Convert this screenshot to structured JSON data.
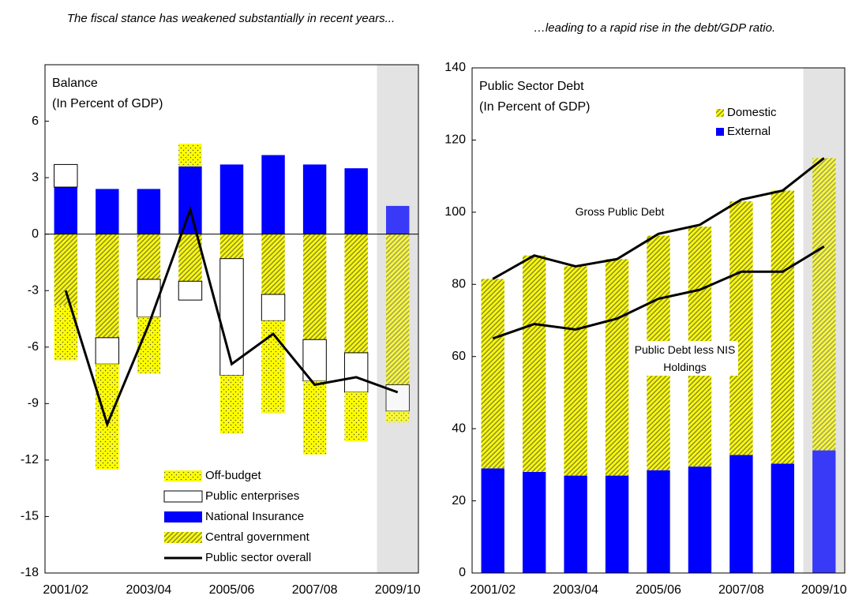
{
  "chart_data": [
    {
      "type": "bar",
      "stacked": true,
      "title": "The fiscal stance has weakened substantially in recent years...",
      "annotations": [
        "Balance",
        "(In Percent of GDP)"
      ],
      "categories": [
        "2001/02",
        null,
        "2003/04",
        null,
        "2005/06",
        null,
        "2007/08",
        null,
        "2009/10"
      ],
      "ylim": [
        -18,
        9
      ],
      "yticks": [
        -18,
        -15,
        -12,
        -9,
        -6,
        -3,
        0,
        3,
        6
      ],
      "legend": "lower center",
      "legend_lines": true,
      "series": [
        {
          "name": "Off-budget",
          "color": "#ffff00",
          "pattern": "dots",
          "values": [
            -2.9,
            -5.6,
            -3.0,
            1.2,
            -3.1,
            -4.9,
            -3.9,
            -2.6,
            -0.6
          ]
        },
        {
          "name": "Public enterprises",
          "color": "#ffffff",
          "values": [
            1.2,
            -1.4,
            -2.0,
            -1.0,
            -6.2,
            -1.4,
            -2.2,
            -2.1,
            -1.4
          ]
        },
        {
          "name": "National Insurance",
          "color": "#0000ff",
          "values": [
            2.5,
            2.4,
            2.4,
            3.6,
            3.7,
            4.2,
            3.7,
            3.5,
            1.5
          ]
        },
        {
          "name": "Central government",
          "color": "#ffff00",
          "pattern": "hatch",
          "values": [
            -3.8,
            -5.5,
            -2.4,
            -2.5,
            -1.3,
            -3.2,
            -5.6,
            -6.3,
            -8.0
          ]
        },
        {
          "name": "Public sector overall",
          "type": "line",
          "color": "#000000",
          "values": [
            -3.0,
            -10.1,
            -4.8,
            1.3,
            -6.9,
            -5.3,
            -8.0,
            -7.6,
            -8.4
          ]
        }
      ]
    },
    {
      "type": "bar",
      "stacked": true,
      "title": "…leading to a rapid rise in the debt/GDP ratio.",
      "annotations": [
        "Public Sector Debt",
        "(In Percent of GDP)"
      ],
      "categories": [
        "2001/02",
        null,
        "2003/04",
        null,
        "2005/06",
        null,
        "2007/08",
        null,
        "2009/10"
      ],
      "ylim": [
        0,
        140
      ],
      "yticks": [
        0,
        20,
        40,
        60,
        80,
        100,
        120,
        140
      ],
      "legend": "upper right",
      "legend_lines": false,
      "series": [
        {
          "name": "Domestic",
          "color": "#ffff00",
          "pattern": "hatch",
          "values": [
            52.5,
            60,
            58,
            60,
            65,
            66.5,
            70.3,
            75.7,
            81
          ]
        },
        {
          "name": "External",
          "color": "#0000ff",
          "values": [
            29,
            28,
            27,
            27,
            28.5,
            29.5,
            32.7,
            30.3,
            34
          ]
        },
        {
          "name": "Gross Public Debt",
          "type": "line",
          "color": "#000000",
          "values": [
            81.5,
            88,
            85,
            87,
            94,
            96.5,
            103.5,
            106,
            115
          ]
        },
        {
          "name": "Public Debt less NIS Holdings",
          "type": "line",
          "color": "#000000",
          "values": [
            65,
            69,
            67.5,
            70.5,
            76,
            78.5,
            83.5,
            83.5,
            90.5
          ]
        }
      ]
    }
  ]
}
